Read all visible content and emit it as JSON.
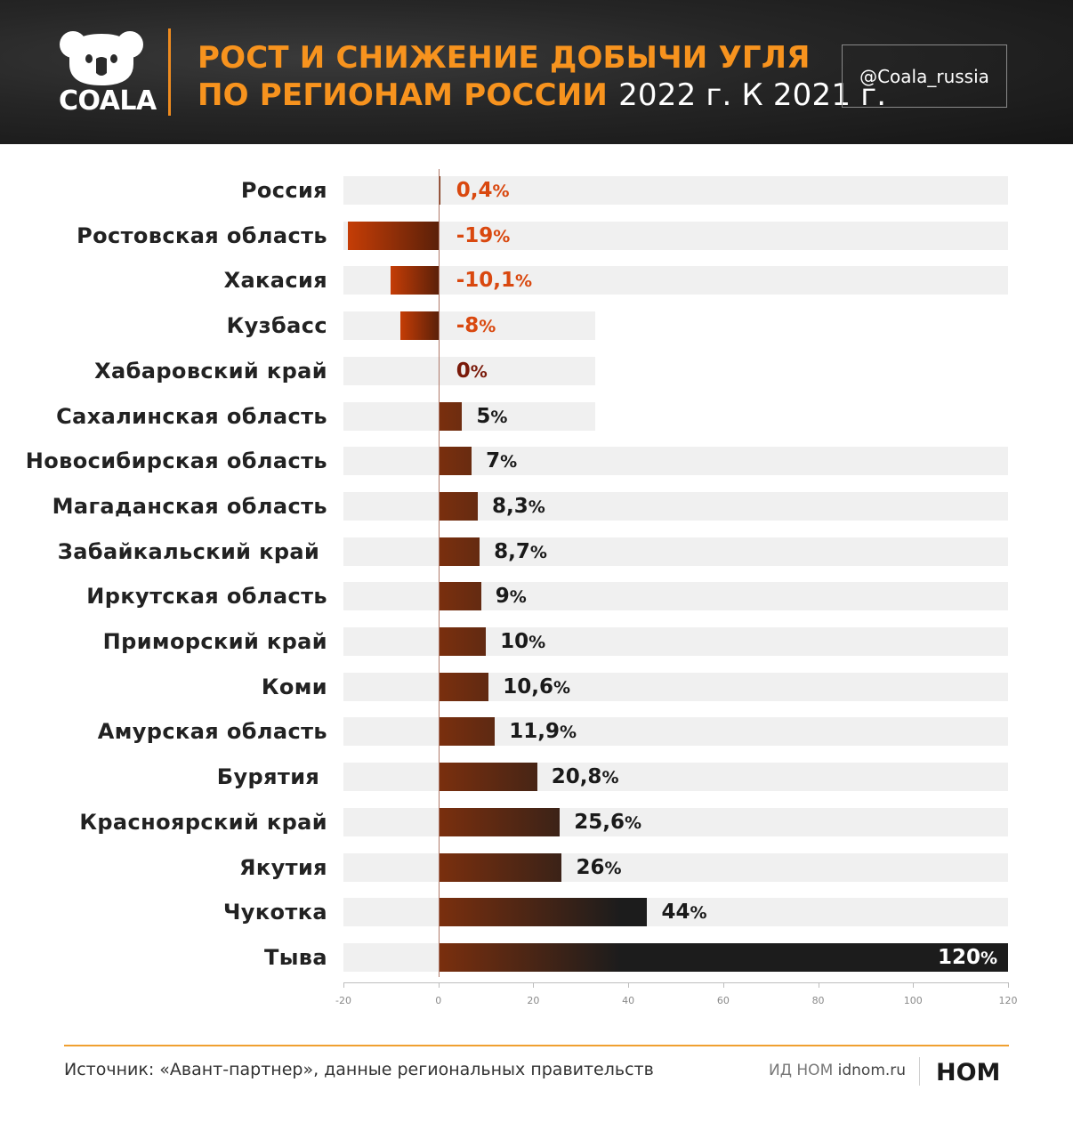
{
  "header": {
    "brand": "COALA",
    "title_line1": "РОСТ И СНИЖЕНИЕ ДОБЫЧИ УГЛЯ",
    "title_line2_main": "ПО РЕГИОНАМ РОССИИ",
    "title_line2_tail": "2022 г. К 2021 г.",
    "handle": "@Coala_russia"
  },
  "chart_data": {
    "type": "bar",
    "orientation": "horizontal",
    "categories": [
      "Россия",
      "Ростовская область",
      "Хакасия",
      "Кузбасс",
      "Хабаровский край",
      "Сахалинская область",
      "Новосибирская область",
      "Магаданская область",
      "Забайкальский край ",
      "Иркутская область",
      "Приморский край",
      "Коми",
      "Амурская область",
      "Бурятия ",
      "Красноярский край",
      "Якутия",
      "Чукотка",
      "Тыва"
    ],
    "values": [
      0.4,
      -19,
      -10.1,
      -8,
      0,
      5,
      7,
      8.3,
      8.7,
      9,
      10,
      10.6,
      11.9,
      20.8,
      25.6,
      26,
      44,
      120
    ],
    "value_labels": [
      "0,4",
      "-19",
      "-10,1",
      "-8",
      "0",
      "5",
      "7",
      "8,3",
      "8,7",
      "9",
      "10",
      "10,6",
      "11,9",
      "20,8",
      "25,6",
      "26",
      "44",
      "120"
    ],
    "unit": "%",
    "xlim": [
      -20,
      120
    ],
    "xticks": [
      "-20",
      "0",
      "20",
      "40",
      "60",
      "80",
      "100",
      "120"
    ],
    "track_ends": [
      120,
      120,
      120,
      33,
      33,
      33,
      120,
      120,
      120,
      120,
      120,
      120,
      120,
      120,
      120,
      120,
      120,
      120
    ],
    "colors": {
      "negative_start": "#c53d06",
      "negative_end": "#5b2009",
      "positive_start": "#7a2f0e",
      "positive_end": "#1c1c1c",
      "negative_label": "#d9480f",
      "zero_label": "#7a1a0a",
      "positive_label": "#1a1a1a",
      "track": "#f0f0f0"
    }
  },
  "footer": {
    "source": "Источник: «Авант-партнер», данные региональных правительств",
    "publisher_prefix": "ИД НОМ",
    "publisher_site": "idnom.ru",
    "logo_text": "НОМ"
  }
}
